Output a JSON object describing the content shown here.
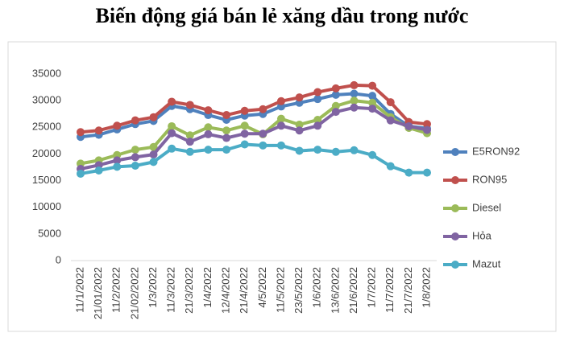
{
  "chart_data": {
    "type": "line",
    "title": "Biến động giá bán lẻ xăng dầu trong nước",
    "categories": [
      "11/1/2022",
      "21/01/2022",
      "11/2/2022",
      "21/02/2022",
      "1/3/2022",
      "11/3/2022",
      "21/3/2022",
      "1/4/2022",
      "12/4/2022",
      "21/4/2022",
      "4/5/2022",
      "11/5/2022",
      "23/5/2022",
      "1/6/2022",
      "13/6/2022",
      "21/6/2022",
      "1/7/2022",
      "11/7/2022",
      "21/7/2022",
      "1/8/2022"
    ],
    "series": [
      {
        "name": "E5RON92",
        "color": "#4f81bd",
        "values": [
          23200,
          23600,
          24600,
          25600,
          26200,
          29000,
          28400,
          27300,
          26400,
          27200,
          27500,
          28900,
          29600,
          30300,
          31100,
          31300,
          30900,
          27500,
          25200,
          24800
        ]
      },
      {
        "name": "RON95",
        "color": "#c0504d",
        "values": [
          24100,
          24400,
          25300,
          26300,
          26900,
          29800,
          29200,
          28200,
          27300,
          28100,
          28400,
          29900,
          30600,
          31600,
          32300,
          32900,
          32800,
          29700,
          26000,
          25600
        ]
      },
      {
        "name": "Diesel",
        "color": "#9bbb59",
        "values": [
          18200,
          18800,
          19800,
          20800,
          21300,
          25200,
          23500,
          25000,
          24400,
          25300,
          23700,
          26600,
          25500,
          26400,
          29000,
          30000,
          29600,
          26900,
          24900,
          23900
        ]
      },
      {
        "name": "Hỏa",
        "color": "#8064a2",
        "values": [
          17200,
          17900,
          18800,
          19400,
          19900,
          23900,
          22300,
          23700,
          23000,
          23800,
          23800,
          25300,
          24400,
          25300,
          27900,
          28700,
          28500,
          26300,
          25200,
          24500
        ]
      },
      {
        "name": "Mazut",
        "color": "#4bacc6",
        "values": [
          16300,
          16900,
          17600,
          17800,
          18500,
          21000,
          20400,
          20800,
          20800,
          21800,
          21600,
          21600,
          20600,
          20800,
          20400,
          20700,
          19800,
          17700,
          16500,
          16500
        ]
      }
    ],
    "ylim": [
      0,
      35000
    ],
    "yticks": [
      0,
      5000,
      10000,
      15000,
      20000,
      25000,
      30000,
      35000
    ],
    "grid": false,
    "legend": "right"
  }
}
